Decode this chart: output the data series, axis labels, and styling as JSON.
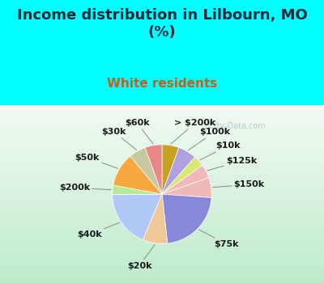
{
  "title": "Income distribution in Lilbourn, MO\n(%)",
  "subtitle": "White residents",
  "bg_cyan": "#00FFFF",
  "bg_chart": "#e0f0e0",
  "watermark": "ⓘ City-Data.com",
  "title_color": "#1a2a3a",
  "subtitle_color": "#c06020",
  "labels": [
    "> $200k",
    "$100k",
    "$10k",
    "$125k",
    "$150k",
    "$75k",
    "$20k",
    "$40k",
    "$200k",
    "$50k",
    "$30k",
    "$60k"
  ],
  "sizes": [
    5.5,
    6.0,
    3.5,
    4.5,
    6.5,
    22.0,
    8.0,
    18.5,
    3.0,
    11.0,
    5.5,
    5.5
  ],
  "colors": [
    "#c8a020",
    "#b0a0e0",
    "#d8e870",
    "#f0b8b8",
    "#f0b8b8",
    "#8888d8",
    "#f0c898",
    "#b0c8f8",
    "#b8e898",
    "#f8a840",
    "#c8c8a0",
    "#e88888"
  ],
  "title_fontsize": 13,
  "subtitle_fontsize": 11,
  "label_fontsize": 8.0,
  "watermark_fontsize": 7.0
}
